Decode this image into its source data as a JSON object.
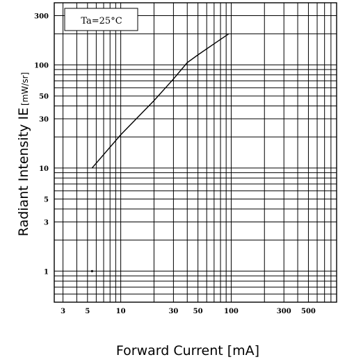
{
  "chart_data": {
    "type": "line",
    "title": "",
    "xlabel": "Forward Current [mA]",
    "ylabel": "Radiant Intensity IE",
    "ylabel_unit": "[mW/sr]",
    "x_scale": "log",
    "y_scale": "log",
    "xlim": [
      2.5,
      900
    ],
    "ylim": [
      0.5,
      400
    ],
    "x_ticks": [
      3,
      5,
      10,
      30,
      50,
      100,
      300,
      500
    ],
    "x_tick_labels": [
      "3",
      "5",
      "10",
      "30",
      "50",
      "100",
      "300",
      "500"
    ],
    "y_ticks": [
      1,
      3,
      5,
      10,
      30,
      50,
      100,
      300
    ],
    "y_tick_labels": [
      "1",
      "3",
      "5",
      "10",
      "30",
      "50",
      "100",
      "300"
    ],
    "grid": true,
    "annotation": "Ta=25°C",
    "series": [
      {
        "x": [
          5.5,
          10,
          20,
          30,
          40,
          50,
          70,
          95
        ],
        "y": [
          10,
          21,
          45,
          73,
          105,
          125,
          160,
          200
        ]
      }
    ],
    "stray_point": {
      "x": 5.5,
      "y": 1
    }
  }
}
